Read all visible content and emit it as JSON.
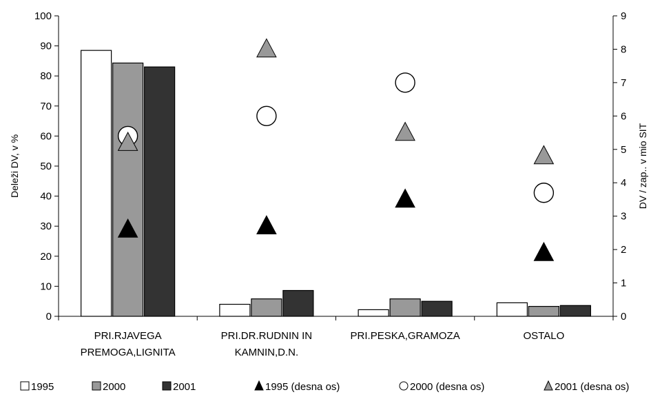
{
  "chart_data": {
    "type": "bar",
    "categories": [
      [
        "PRI.RJAVEGA",
        "PREMOGA,LIGNITA"
      ],
      [
        "PRI.DR.RUDNIN IN",
        "KAMNIN,D.N."
      ],
      [
        "PRI.PESKA,GRAMOZA"
      ],
      [
        "OSTALO"
      ]
    ],
    "ylabel": "Deleži DV, v %",
    "y2label": "DV / zap.. v mio SIT",
    "ylim": [
      0,
      100
    ],
    "y2lim": [
      0,
      9
    ],
    "yticks": [
      0,
      10,
      20,
      30,
      40,
      50,
      60,
      70,
      80,
      90,
      100
    ],
    "y2ticks": [
      0,
      1,
      2,
      3,
      4,
      5,
      6,
      7,
      8,
      9
    ],
    "bar_series": [
      {
        "name": "1995",
        "color": "#ffffff",
        "values": [
          88.5,
          4.0,
          2.2,
          4.5
        ]
      },
      {
        "name": "2000",
        "color": "#999999",
        "values": [
          84.3,
          5.8,
          5.8,
          3.3
        ]
      },
      {
        "name": "2001",
        "color": "#333333",
        "values": [
          83.0,
          8.6,
          5.0,
          3.6
        ]
      }
    ],
    "marker_series": [
      {
        "name": "1995 (desna os)",
        "marker": "triangle",
        "color": "#000000",
        "values": [
          2.6,
          2.7,
          3.5,
          1.9
        ]
      },
      {
        "name": "2000 (desna os)",
        "marker": "circle",
        "color": "#ffffff",
        "values": [
          5.4,
          6.0,
          7.0,
          3.7
        ]
      },
      {
        "name": "2001 (desna os)",
        "marker": "triangle",
        "color": "#999999",
        "values": [
          5.2,
          8.0,
          5.5,
          4.8
        ]
      }
    ],
    "legend_position": "bottom",
    "grid": false
  }
}
